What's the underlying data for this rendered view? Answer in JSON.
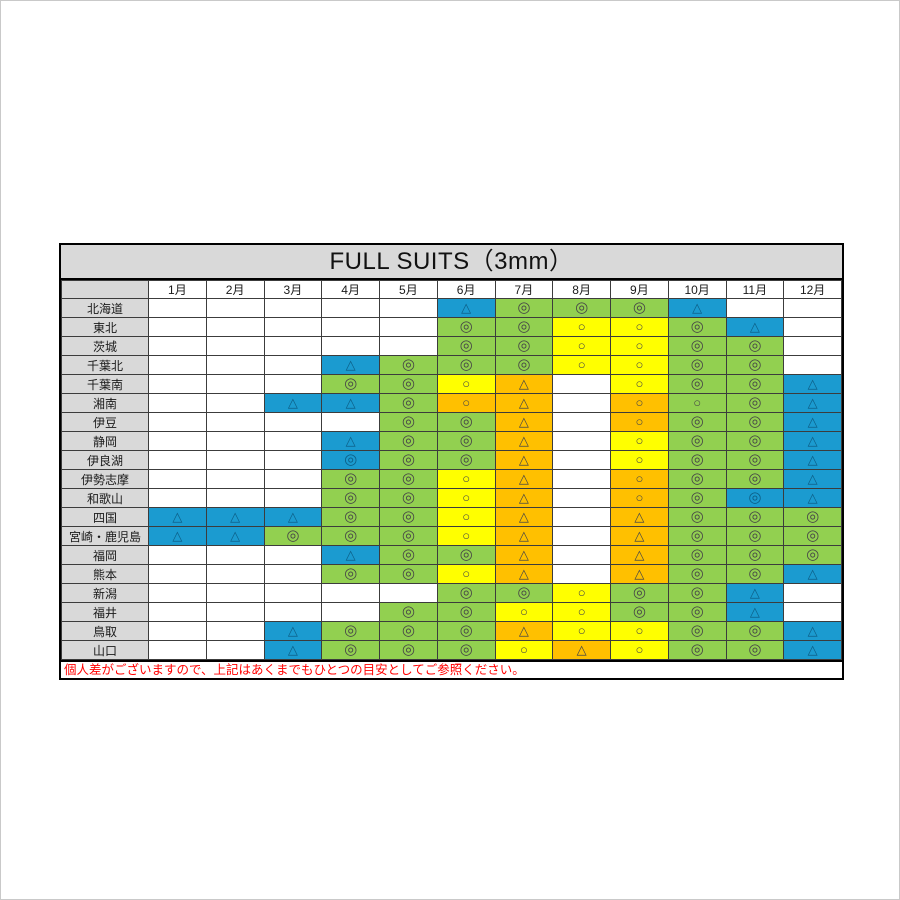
{
  "chart_data": {
    "type": "table",
    "title": "FULL SUITS（3mm）",
    "columns": [
      "1月",
      "2月",
      "3月",
      "4月",
      "5月",
      "6月",
      "7月",
      "8月",
      "9月",
      "10月",
      "11月",
      "12月"
    ],
    "rows": [
      {
        "region": "北海道",
        "cells": [
          "",
          "",
          "",
          "",
          "",
          "b△",
          "g◎",
          "g◎",
          "g◎",
          "b△",
          "",
          ""
        ]
      },
      {
        "region": "東北",
        "cells": [
          "",
          "",
          "",
          "",
          "",
          "g◎",
          "g◎",
          "y○",
          "y○",
          "g◎",
          "b△",
          ""
        ]
      },
      {
        "region": "茨城",
        "cells": [
          "",
          "",
          "",
          "",
          "",
          "g◎",
          "g◎",
          "y○",
          "y○",
          "g◎",
          "g◎",
          ""
        ]
      },
      {
        "region": "千葉北",
        "cells": [
          "",
          "",
          "",
          "b△",
          "g◎",
          "g◎",
          "g◎",
          "y○",
          "y○",
          "g◎",
          "g◎",
          ""
        ]
      },
      {
        "region": "千葉南",
        "cells": [
          "",
          "",
          "",
          "g◎",
          "g◎",
          "y○",
          "o△",
          "",
          "y○",
          "g◎",
          "g◎",
          "b△"
        ]
      },
      {
        "region": "湘南",
        "cells": [
          "",
          "",
          "b△",
          "b△",
          "g◎",
          "o○",
          "o△",
          "",
          "o○",
          "g○",
          "g◎",
          "b△"
        ]
      },
      {
        "region": "伊豆",
        "cells": [
          "",
          "",
          "",
          "",
          "g◎",
          "g◎",
          "o△",
          "",
          "o○",
          "g◎",
          "g◎",
          "b△"
        ]
      },
      {
        "region": "静岡",
        "cells": [
          "",
          "",
          "",
          "b△",
          "g◎",
          "g◎",
          "o△",
          "",
          "y○",
          "g◎",
          "g◎",
          "b△"
        ]
      },
      {
        "region": "伊良湖",
        "cells": [
          "",
          "",
          "",
          "b◎",
          "g◎",
          "g◎",
          "o△",
          "",
          "y○",
          "g◎",
          "g◎",
          "b△"
        ]
      },
      {
        "region": "伊勢志摩",
        "cells": [
          "",
          "",
          "",
          "g◎",
          "g◎",
          "y○",
          "o△",
          "",
          "o○",
          "g◎",
          "g◎",
          "b△"
        ]
      },
      {
        "region": "和歌山",
        "cells": [
          "",
          "",
          "",
          "g◎",
          "g◎",
          "y○",
          "o△",
          "",
          "o○",
          "g◎",
          "b◎",
          "b△"
        ]
      },
      {
        "region": "四国",
        "cells": [
          "b△",
          "b△",
          "b△",
          "g◎",
          "g◎",
          "y○",
          "o△",
          "",
          "o△",
          "g◎",
          "g◎",
          "g◎"
        ]
      },
      {
        "region": "宮崎・鹿児島",
        "cells": [
          "b△",
          "b△",
          "g◎",
          "g◎",
          "g◎",
          "y○",
          "o△",
          "",
          "o△",
          "g◎",
          "g◎",
          "g◎"
        ]
      },
      {
        "region": "福岡",
        "cells": [
          "",
          "",
          "",
          "b△",
          "g◎",
          "g◎",
          "o△",
          "",
          "o△",
          "g◎",
          "g◎",
          "g◎"
        ]
      },
      {
        "region": "熊本",
        "cells": [
          "",
          "",
          "",
          "g◎",
          "g◎",
          "y○",
          "o△",
          "",
          "o△",
          "g◎",
          "g◎",
          "b△"
        ]
      },
      {
        "region": "新潟",
        "cells": [
          "",
          "",
          "",
          "",
          "",
          "g◎",
          "g◎",
          "y○",
          "g◎",
          "g◎",
          "b△",
          ""
        ]
      },
      {
        "region": "福井",
        "cells": [
          "",
          "",
          "",
          "",
          "g◎",
          "g◎",
          "y○",
          "y○",
          "g◎",
          "g◎",
          "b△",
          ""
        ]
      },
      {
        "region": "鳥取",
        "cells": [
          "",
          "",
          "b△",
          "g◎",
          "g◎",
          "g◎",
          "o△",
          "y○",
          "y○",
          "g◎",
          "g◎",
          "b△"
        ]
      },
      {
        "region": "山口",
        "cells": [
          "",
          "",
          "b△",
          "g◎",
          "g◎",
          "g◎",
          "y○",
          "o△",
          "y○",
          "g◎",
          "g◎",
          "b△"
        ]
      }
    ],
    "symbols_used": [
      "◎",
      "○",
      "△"
    ],
    "colors": {
      "green": "#92d050",
      "yellow": "#ffff00",
      "orange": "#ffc000",
      "blue": "#1b9bd0",
      "header_gray": "#d9d9d9",
      "note_red": "#ff0000"
    },
    "note": "個人差がございますので、上記はあくまでもひとつの目安としてご参照ください。"
  }
}
